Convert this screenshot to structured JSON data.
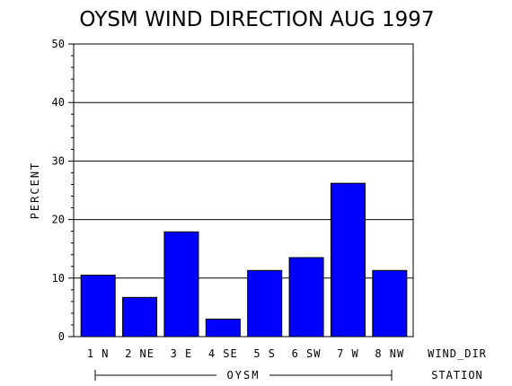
{
  "chart_data": {
    "type": "bar",
    "title": "OYSM WIND DIRECTION AUG 1997",
    "ylabel": "PERCENT",
    "xlabel": "WIND_DIR",
    "group_axis_label": "STATION",
    "group_label": "OYSM",
    "ylim": [
      0,
      50
    ],
    "y_ticks": [
      "0",
      "10",
      "20",
      "30",
      "40",
      "50"
    ],
    "grid": true,
    "bar_color": "#0000ff",
    "categories": [
      "1 N",
      "2 NE",
      "3 E",
      "4 SE",
      "5 S",
      "6 SW",
      "7 W",
      "8 NW"
    ],
    "values": [
      10.5,
      6.7,
      17.9,
      3.0,
      11.3,
      13.5,
      26.2,
      11.3
    ]
  }
}
